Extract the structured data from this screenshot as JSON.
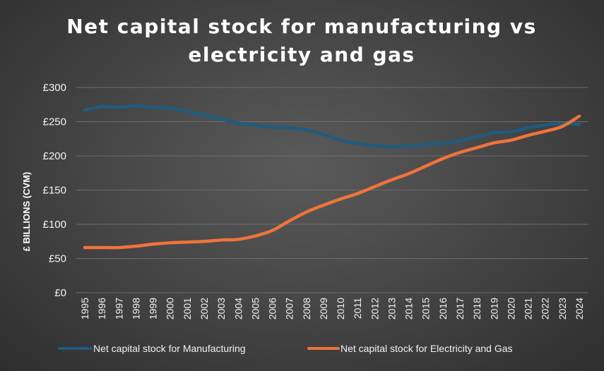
{
  "chart_data": {
    "type": "line",
    "title": [
      "Net capital stock for manufacturing vs",
      "electricity and gas"
    ],
    "xlabel": "",
    "ylabel": "£ BILLIONS (CVM)",
    "ylim": [
      0,
      300
    ],
    "y_ticks": [
      0,
      50,
      100,
      150,
      200,
      250,
      300
    ],
    "y_tick_labels": [
      "£0",
      "£50",
      "£100",
      "£150",
      "£200",
      "£250",
      "£300"
    ],
    "grid": true,
    "legend_position": "bottom",
    "x": [
      "1995",
      "1996",
      "1997",
      "1998",
      "1999",
      "2000",
      "2001",
      "2002",
      "2003",
      "2004",
      "2005",
      "2006",
      "2007",
      "2008",
      "2009",
      "2010",
      "2011",
      "2012",
      "2013",
      "2014",
      "2015",
      "2016",
      "2017",
      "2018",
      "2019",
      "2020",
      "2021",
      "2022",
      "2023",
      "2024"
    ],
    "series": [
      {
        "name": "Net capital stock for Manufacturing",
        "color": "#1f5c7f",
        "values": [
          267,
          272,
          271,
          273,
          271,
          270,
          265,
          260,
          254,
          248,
          245,
          242,
          241,
          238,
          231,
          223,
          218,
          215,
          213,
          214,
          217,
          218,
          222,
          228,
          234,
          235,
          241,
          245,
          247,
          246
        ]
      },
      {
        "name": "Net capital stock for Electricity and Gas",
        "color": "#f0733a",
        "values": [
          66,
          66,
          66,
          68,
          71,
          73,
          74,
          75,
          77,
          78,
          83,
          91,
          105,
          118,
          128,
          137,
          145,
          155,
          165,
          174,
          185,
          196,
          205,
          212,
          219,
          223,
          230,
          236,
          243,
          258
        ]
      }
    ]
  }
}
